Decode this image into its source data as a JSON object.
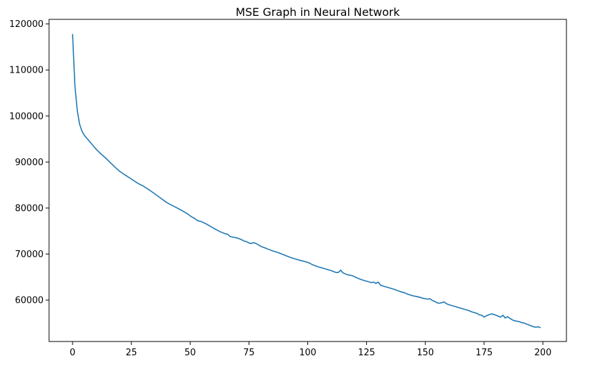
{
  "chart_data": {
    "type": "line",
    "title": "MSE Graph in Neural Network",
    "xlabel": "",
    "ylabel": "",
    "xlim": [
      -10,
      210
    ],
    "ylim": [
      51000,
      121000
    ],
    "x_ticks": [
      0,
      25,
      50,
      75,
      100,
      125,
      150,
      175,
      200
    ],
    "y_ticks": [
      60000,
      70000,
      80000,
      90000,
      100000,
      110000,
      120000
    ],
    "grid": false,
    "line_color": "#1f77b4",
    "series": [
      {
        "x": [
          0,
          1,
          2,
          3,
          4,
          5,
          6,
          8,
          10,
          12,
          14,
          16,
          18,
          20,
          22,
          25,
          28,
          30,
          33,
          36,
          40,
          43,
          46,
          49,
          50,
          51,
          52,
          53,
          55,
          57,
          60,
          63,
          65,
          66,
          67,
          68,
          70,
          72,
          73,
          74,
          75,
          76,
          77,
          78,
          80,
          82,
          83,
          85,
          87,
          90,
          93,
          95,
          97,
          100,
          102,
          104,
          106,
          108,
          110,
          112,
          113,
          114,
          115,
          117,
          119,
          121,
          123,
          125,
          127,
          128,
          129,
          130,
          131,
          133,
          135,
          137,
          139,
          141,
          143,
          145,
          147,
          149,
          151,
          152,
          153,
          154,
          155,
          156,
          158,
          159,
          160,
          162,
          164,
          166,
          168,
          170,
          172,
          173,
          174,
          175,
          176,
          177,
          178,
          179,
          180,
          181,
          182,
          183,
          184,
          185,
          186,
          187,
          188,
          189,
          190,
          191,
          192,
          193,
          194,
          195,
          196,
          197,
          198,
          199
        ],
        "y": [
          117800,
          106500,
          101200,
          98200,
          96700,
          95800,
          95200,
          94000,
          92800,
          91800,
          90900,
          89900,
          88900,
          88000,
          87300,
          86300,
          85300,
          84800,
          83800,
          82700,
          81200,
          80400,
          79600,
          78700,
          78300,
          78000,
          77700,
          77300,
          77000,
          76500,
          75600,
          74800,
          74400,
          74300,
          73800,
          73700,
          73500,
          73100,
          72800,
          72700,
          72400,
          72300,
          72500,
          72300,
          71700,
          71300,
          71100,
          70700,
          70400,
          69800,
          69200,
          68900,
          68600,
          68200,
          67700,
          67300,
          67000,
          66700,
          66400,
          66000,
          66000,
          66500,
          65900,
          65500,
          65300,
          64800,
          64400,
          64100,
          63800,
          63900,
          63600,
          63900,
          63200,
          62900,
          62600,
          62300,
          61900,
          61600,
          61200,
          60900,
          60700,
          60400,
          60200,
          60300,
          59900,
          59700,
          59400,
          59300,
          59600,
          59200,
          59000,
          58700,
          58400,
          58100,
          57800,
          57400,
          57100,
          56800,
          56700,
          56300,
          56600,
          56800,
          57000,
          56900,
          56700,
          56500,
          56300,
          56700,
          56100,
          56400,
          56000,
          55700,
          55500,
          55400,
          55300,
          55100,
          55000,
          54800,
          54600,
          54400,
          54200,
          54100,
          54200,
          54000
        ]
      }
    ]
  }
}
